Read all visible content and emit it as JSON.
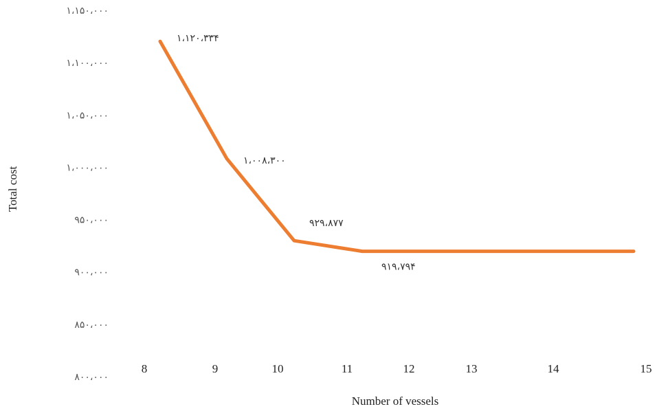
{
  "chart_data": {
    "type": "line",
    "title": "",
    "xlabel": "Number of vessels",
    "ylabel": "Total cost",
    "x_tick_labels": [
      "8",
      "9",
      "10",
      "11",
      "12",
      "13",
      "14",
      "15"
    ],
    "y_tick_labels": [
      "۸۰۰،۰۰۰",
      "۸۵۰،۰۰۰",
      "۹۰۰،۰۰۰",
      "۹۵۰،۰۰۰",
      "۱،۰۰۰،۰۰۰",
      "۱،۰۵۰،۰۰۰",
      "۱،۱۰۰،۰۰۰",
      "۱،۱۵۰،۰۰۰"
    ],
    "ylim": [
      800000,
      1150000
    ],
    "grid": false,
    "legend": "none",
    "series": [
      {
        "color": "#ED7D31",
        "points": [
          {
            "x": 8,
            "y": 1120334
          },
          {
            "x": 9,
            "y": 1008300
          },
          {
            "x": 10,
            "y": 929877
          },
          {
            "x": 11,
            "y": 919794
          },
          {
            "x": 12,
            "y": 919794
          },
          {
            "x": 13,
            "y": 919794
          },
          {
            "x": 14,
            "y": 919794
          },
          {
            "x": 15,
            "y": 919794
          }
        ]
      }
    ],
    "data_labels": [
      {
        "x": 8,
        "text": "۱،۱۲۰،۳۳۴"
      },
      {
        "x": 9,
        "text": "۱،۰۰۸،۳۰۰"
      },
      {
        "x": 10,
        "text": "۹۲۹،۸۷۷"
      },
      {
        "x": 11,
        "text": "۹۱۹،۷۹۴"
      }
    ]
  }
}
